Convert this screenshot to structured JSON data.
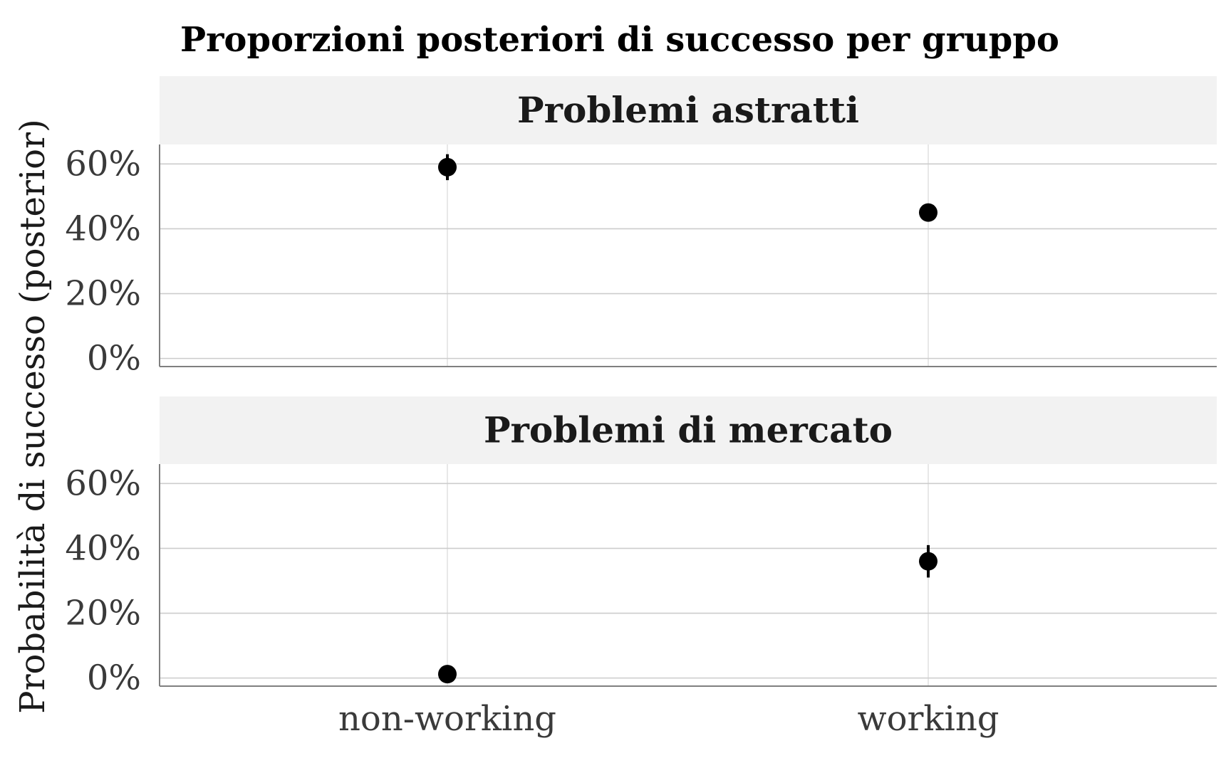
{
  "chart_data": {
    "type": "scatter",
    "title": "Proporzioni posteriori di successo per gruppo",
    "ylabel": "Probabilità di successo (posterior)",
    "xlabel": "",
    "categories": [
      "non-working",
      "working"
    ],
    "y_ticks": [
      "0%",
      "20%",
      "40%",
      "60%"
    ],
    "y_tick_values": [
      0,
      0.2,
      0.4,
      0.6
    ],
    "ylim": [
      -0.025,
      0.66
    ],
    "grid": true,
    "panels": [
      {
        "strip": "Problemi astratti",
        "points": [
          {
            "category": "non-working",
            "y": 0.59,
            "lo": 0.55,
            "hi": 0.63
          },
          {
            "category": "working",
            "y": 0.45,
            "lo": 0.44,
            "hi": 0.46
          }
        ]
      },
      {
        "strip": "Problemi di mercato",
        "points": [
          {
            "category": "non-working",
            "y": 0.012,
            "lo": 0.005,
            "hi": 0.02
          },
          {
            "category": "working",
            "y": 0.36,
            "lo": 0.31,
            "hi": 0.41
          }
        ]
      }
    ]
  }
}
